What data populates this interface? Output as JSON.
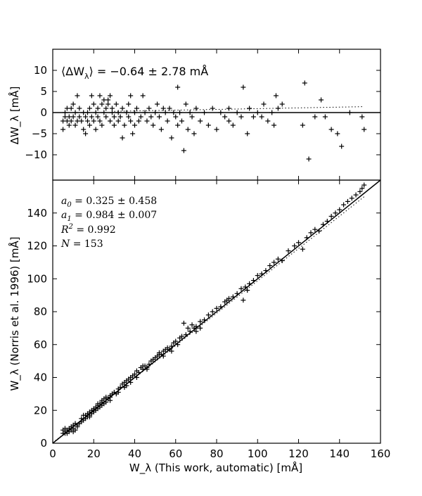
{
  "chart_data": [
    {
      "type": "scatter",
      "panel": "top",
      "ylabel": "ΔW_λ [mÅ]",
      "ylim": [
        -16,
        15
      ],
      "xlim": [
        0,
        160
      ],
      "yticks": [
        -10,
        -5,
        0,
        5,
        10
      ],
      "annotation": "⟨ΔW_λ⟩ = −0.64 ± 2.78 mÅ",
      "annotation_parts": {
        "lhs": "⟨ΔW",
        "sub": "λ",
        "rhs": "⟩  = −0.64  ± 2.78 mÅ"
      },
      "zero_line": 0,
      "fit_line": {
        "x": [
          30,
          152
        ],
        "y": [
          0.3,
          1.4
        ],
        "style": "dotted"
      },
      "points": [
        [
          5,
          -4
        ],
        [
          5,
          -2
        ],
        [
          6,
          -1
        ],
        [
          6,
          0
        ],
        [
          7,
          -2
        ],
        [
          7,
          1
        ],
        [
          8,
          -1
        ],
        [
          8,
          -3
        ],
        [
          9,
          1
        ],
        [
          9,
          -2
        ],
        [
          10,
          -1
        ],
        [
          10,
          2
        ],
        [
          11,
          -3
        ],
        [
          11,
          0
        ],
        [
          12,
          4
        ],
        [
          12,
          -2
        ],
        [
          13,
          -1
        ],
        [
          13,
          1
        ],
        [
          14,
          -2
        ],
        [
          15,
          -4
        ],
        [
          15,
          0
        ],
        [
          16,
          -5
        ],
        [
          16,
          -1
        ],
        [
          17,
          0
        ],
        [
          17,
          -2
        ],
        [
          18,
          1
        ],
        [
          18,
          -3
        ],
        [
          19,
          4
        ],
        [
          19,
          -1
        ],
        [
          20,
          -2
        ],
        [
          20,
          2
        ],
        [
          21,
          0
        ],
        [
          21,
          -4
        ],
        [
          22,
          -1
        ],
        [
          22,
          1
        ],
        [
          23,
          4
        ],
        [
          23,
          -2
        ],
        [
          24,
          2
        ],
        [
          24,
          -3
        ],
        [
          25,
          3
        ],
        [
          25,
          0
        ],
        [
          26,
          1
        ],
        [
          26,
          -1
        ],
        [
          27,
          3
        ],
        [
          27,
          2
        ],
        [
          28,
          -2
        ],
        [
          28,
          4
        ],
        [
          29,
          0
        ],
        [
          29,
          1
        ],
        [
          30,
          -1
        ],
        [
          30,
          -3
        ],
        [
          31,
          2
        ],
        [
          32,
          0
        ],
        [
          32,
          -2
        ],
        [
          33,
          -1
        ],
        [
          34,
          -6
        ],
        [
          34,
          1
        ],
        [
          35,
          -3
        ],
        [
          36,
          0
        ],
        [
          37,
          -1
        ],
        [
          37,
          2
        ],
        [
          38,
          -2
        ],
        [
          38,
          4
        ],
        [
          39,
          -5
        ],
        [
          40,
          0
        ],
        [
          40,
          -3
        ],
        [
          41,
          1
        ],
        [
          42,
          -2
        ],
        [
          43,
          -1
        ],
        [
          44,
          4
        ],
        [
          45,
          0
        ],
        [
          46,
          -2
        ],
        [
          47,
          1
        ],
        [
          48,
          -1
        ],
        [
          49,
          -3
        ],
        [
          50,
          0
        ],
        [
          51,
          2
        ],
        [
          52,
          -1
        ],
        [
          53,
          -4
        ],
        [
          54,
          1
        ],
        [
          55,
          0
        ],
        [
          56,
          -2
        ],
        [
          57,
          1
        ],
        [
          58,
          -6
        ],
        [
          59,
          0
        ],
        [
          60,
          -1
        ],
        [
          61,
          6
        ],
        [
          61,
          -3
        ],
        [
          62,
          0
        ],
        [
          63,
          -2
        ],
        [
          64,
          -9
        ],
        [
          65,
          2
        ],
        [
          66,
          -4
        ],
        [
          67,
          0
        ],
        [
          68,
          -1
        ],
        [
          69,
          -5
        ],
        [
          70,
          1
        ],
        [
          72,
          -2
        ],
        [
          74,
          0
        ],
        [
          76,
          -3
        ],
        [
          78,
          1
        ],
        [
          80,
          -4
        ],
        [
          82,
          0
        ],
        [
          84,
          -1
        ],
        [
          86,
          -2
        ],
        [
          86,
          1
        ],
        [
          88,
          -3
        ],
        [
          90,
          0
        ],
        [
          92,
          -1
        ],
        [
          93,
          6
        ],
        [
          95,
          -5
        ],
        [
          96,
          1
        ],
        [
          98,
          -1
        ],
        [
          100,
          0
        ],
        [
          102,
          -1
        ],
        [
          103,
          2
        ],
        [
          105,
          -2
        ],
        [
          107,
          0
        ],
        [
          108,
          -3
        ],
        [
          109,
          4
        ],
        [
          110,
          1
        ],
        [
          112,
          2
        ],
        [
          122,
          -3
        ],
        [
          123,
          7
        ],
        [
          125,
          -11
        ],
        [
          128,
          -1
        ],
        [
          131,
          3
        ],
        [
          133,
          -1
        ],
        [
          136,
          -4
        ],
        [
          139,
          -5
        ],
        [
          141,
          -8
        ],
        [
          145,
          0
        ],
        [
          151,
          -1
        ],
        [
          152,
          -4
        ]
      ]
    },
    {
      "type": "scatter",
      "panel": "bottom",
      "xlabel": "W_λ (This work, automatic) [mÅ]",
      "ylabel": "W_λ (Norris et al. 1996) [mÅ]",
      "xlim": [
        0,
        160
      ],
      "ylim": [
        0,
        160
      ],
      "xticks": [
        0,
        20,
        40,
        60,
        80,
        100,
        120,
        140,
        160
      ],
      "yticks": [
        0,
        20,
        40,
        60,
        80,
        100,
        120,
        140
      ],
      "stats": [
        {
          "label": "a",
          "sub": "0",
          "value": " = 0.325  ± 0.458"
        },
        {
          "label": "a",
          "sub": "1",
          "value": " = 0.984  ± 0.007"
        },
        {
          "label": "R",
          "sup": "2",
          "value": " = 0.992"
        },
        {
          "label": "N",
          "value": " = 153"
        }
      ],
      "identity_line": {
        "x": [
          0,
          160
        ],
        "y": [
          0,
          160
        ],
        "style": "solid"
      },
      "fit_line": {
        "x": [
          0,
          152
        ],
        "y": [
          0.325,
          149.9
        ],
        "style": "dotted"
      },
      "points": [
        [
          5,
          6
        ],
        [
          5,
          8
        ],
        [
          6,
          7
        ],
        [
          6,
          9
        ],
        [
          7,
          6
        ],
        [
          7,
          8
        ],
        [
          8,
          9
        ],
        [
          8,
          7
        ],
        [
          9,
          10
        ],
        [
          9,
          8
        ],
        [
          10,
          9
        ],
        [
          10,
          11
        ],
        [
          11,
          8
        ],
        [
          11,
          12
        ],
        [
          12,
          10
        ],
        [
          13,
          12
        ],
        [
          14,
          15
        ],
        [
          15,
          14
        ],
        [
          15,
          17
        ],
        [
          16,
          15
        ],
        [
          17,
          18
        ],
        [
          17,
          16
        ],
        [
          18,
          19
        ],
        [
          18,
          17
        ],
        [
          19,
          18
        ],
        [
          19,
          20
        ],
        [
          20,
          21
        ],
        [
          20,
          19
        ],
        [
          21,
          22
        ],
        [
          21,
          20
        ],
        [
          22,
          23
        ],
        [
          22,
          21
        ],
        [
          23,
          24
        ],
        [
          23,
          22
        ],
        [
          24,
          25
        ],
        [
          24,
          26
        ],
        [
          25,
          27
        ],
        [
          25,
          24
        ],
        [
          26,
          28
        ],
        [
          26,
          25
        ],
        [
          27,
          27
        ],
        [
          28,
          29
        ],
        [
          28,
          26
        ],
        [
          29,
          30
        ],
        [
          30,
          31
        ],
        [
          31,
          30
        ],
        [
          32,
          33
        ],
        [
          33,
          34
        ],
        [
          34,
          36
        ],
        [
          35,
          37
        ],
        [
          35,
          34
        ],
        [
          36,
          38
        ],
        [
          37,
          39
        ],
        [
          38,
          40
        ],
        [
          38,
          37
        ],
        [
          39,
          41
        ],
        [
          40,
          42
        ],
        [
          41,
          44
        ],
        [
          41,
          40
        ],
        [
          42,
          43
        ],
        [
          43,
          46
        ],
        [
          44,
          45
        ],
        [
          45,
          47
        ],
        [
          46,
          46
        ],
        [
          47,
          48
        ],
        [
          48,
          50
        ],
        [
          49,
          51
        ],
        [
          50,
          52
        ],
        [
          51,
          53
        ],
        [
          52,
          55
        ],
        [
          53,
          54
        ],
        [
          54,
          56
        ],
        [
          55,
          57
        ],
        [
          56,
          58
        ],
        [
          57,
          57
        ],
        [
          58,
          59
        ],
        [
          59,
          61
        ],
        [
          60,
          62
        ],
        [
          61,
          60
        ],
        [
          62,
          64
        ],
        [
          63,
          65
        ],
        [
          64,
          73
        ],
        [
          65,
          66
        ],
        [
          66,
          70
        ],
        [
          67,
          68
        ],
        [
          68,
          72
        ],
        [
          69,
          70
        ],
        [
          70,
          71
        ],
        [
          72,
          74
        ],
        [
          74,
          75
        ],
        [
          76,
          78
        ],
        [
          78,
          80
        ],
        [
          80,
          82
        ],
        [
          82,
          83
        ],
        [
          84,
          86
        ],
        [
          85,
          87
        ],
        [
          86,
          88
        ],
        [
          88,
          89
        ],
        [
          90,
          91
        ],
        [
          92,
          94
        ],
        [
          93,
          87
        ],
        [
          94,
          95
        ],
        [
          96,
          97
        ],
        [
          98,
          99
        ],
        [
          100,
          102
        ],
        [
          102,
          103
        ],
        [
          104,
          105
        ],
        [
          106,
          108
        ],
        [
          108,
          110
        ],
        [
          110,
          112
        ],
        [
          112,
          111
        ],
        [
          115,
          117
        ],
        [
          118,
          120
        ],
        [
          120,
          122
        ],
        [
          122,
          118
        ],
        [
          124,
          125
        ],
        [
          126,
          128
        ],
        [
          128,
          130
        ],
        [
          130,
          129
        ],
        [
          132,
          133
        ],
        [
          134,
          135
        ],
        [
          136,
          138
        ],
        [
          138,
          140
        ],
        [
          140,
          142
        ],
        [
          142,
          145
        ],
        [
          144,
          147
        ],
        [
          146,
          149
        ],
        [
          148,
          151
        ],
        [
          150,
          153
        ],
        [
          151,
          155
        ],
        [
          152,
          157
        ],
        [
          52,
          54
        ],
        [
          54,
          53
        ],
        [
          46,
          45
        ],
        [
          44,
          47
        ],
        [
          36,
          35
        ],
        [
          32,
          31
        ],
        [
          28,
          28
        ],
        [
          26,
          27
        ],
        [
          24,
          23
        ],
        [
          22,
          24
        ],
        [
          20,
          20
        ],
        [
          18,
          16
        ],
        [
          16,
          17
        ],
        [
          14,
          13
        ],
        [
          12,
          11
        ],
        [
          10,
          7
        ],
        [
          8,
          8
        ],
        [
          6,
          6
        ],
        [
          70,
          68
        ],
        [
          72,
          70
        ],
        [
          95,
          93
        ],
        [
          58,
          56
        ]
      ]
    }
  ]
}
